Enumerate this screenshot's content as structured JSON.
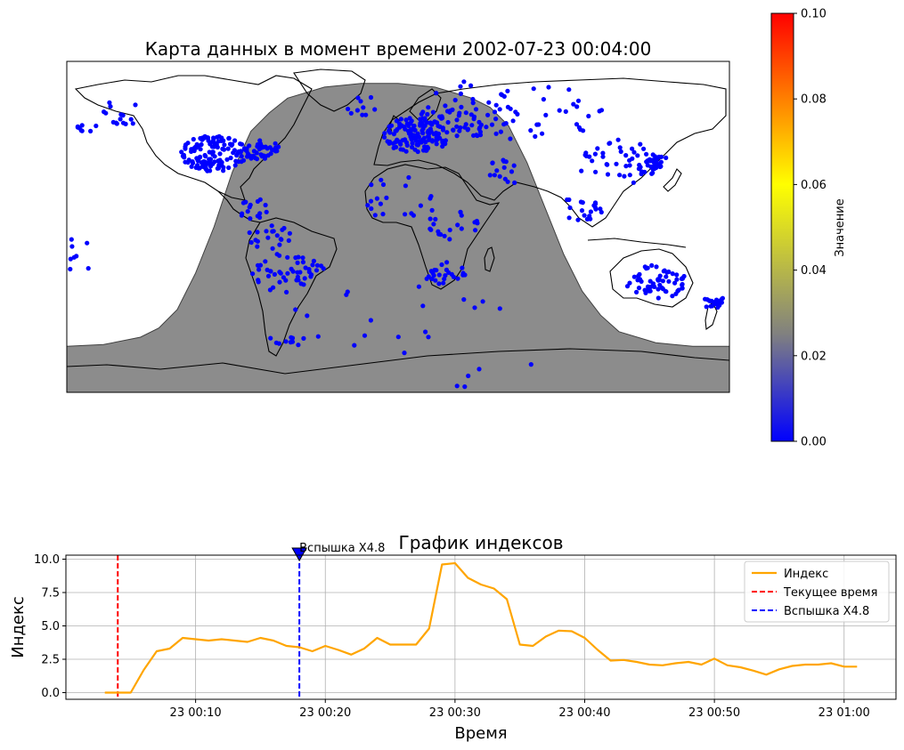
{
  "map": {
    "title": "Карта данных в момент времени 2002-07-23 00:04:00",
    "night_color": "#808080",
    "point_color": "#0000ff",
    "lon_range": [
      -180,
      180
    ],
    "lat_range": [
      -90,
      90
    ],
    "terminator_night_below_lat": [
      [
        -180,
        -65
      ],
      [
        -160,
        -64
      ],
      [
        -140,
        -60
      ],
      [
        -130,
        -55
      ],
      [
        -120,
        -45
      ],
      [
        -110,
        -25
      ],
      [
        -100,
        0
      ],
      [
        -90,
        30
      ],
      [
        -80,
        52
      ],
      [
        -70,
        62
      ],
      [
        -60,
        70
      ],
      [
        -40,
        76
      ],
      [
        -20,
        78
      ],
      [
        0,
        78
      ],
      [
        20,
        76
      ],
      [
        40,
        70
      ],
      [
        50,
        65
      ],
      [
        60,
        55
      ],
      [
        70,
        35
      ],
      [
        80,
        10
      ],
      [
        90,
        -15
      ],
      [
        100,
        -35
      ],
      [
        110,
        -48
      ],
      [
        120,
        -57
      ],
      [
        140,
        -63
      ],
      [
        160,
        -65
      ],
      [
        180,
        -65
      ]
    ],
    "station_clusters": [
      {
        "lon": -100,
        "lat": 40,
        "r": 14,
        "n": 130
      },
      {
        "lon": -75,
        "lat": 42,
        "r": 8,
        "n": 40
      },
      {
        "lon": 10,
        "lat": 50,
        "r": 14,
        "n": 120
      },
      {
        "lon": 30,
        "lat": 55,
        "r": 14,
        "n": 40
      },
      {
        "lon": 40,
        "lat": 65,
        "r": 22,
        "n": 40
      },
      {
        "lon": -60,
        "lat": -25,
        "r": 16,
        "n": 50
      },
      {
        "lon": -70,
        "lat": -5,
        "r": 10,
        "n": 20
      },
      {
        "lon": 25,
        "lat": -25,
        "r": 9,
        "n": 25
      },
      {
        "lon": 30,
        "lat": 0,
        "r": 12,
        "n": 20
      },
      {
        "lon": 0,
        "lat": 15,
        "r": 18,
        "n": 20
      },
      {
        "lon": 80,
        "lat": 60,
        "r": 25,
        "n": 30
      },
      {
        "lon": 120,
        "lat": 35,
        "r": 18,
        "n": 50
      },
      {
        "lon": 140,
        "lat": 36,
        "r": 5,
        "n": 20
      },
      {
        "lon": 140,
        "lat": -30,
        "r": 13,
        "n": 60
      },
      {
        "lon": 172,
        "lat": -41,
        "r": 5,
        "n": 20
      },
      {
        "lon": -150,
        "lat": 62,
        "r": 10,
        "n": 15
      },
      {
        "lon": 100,
        "lat": 10,
        "r": 10,
        "n": 20
      },
      {
        "lon": -170,
        "lat": 55,
        "r": 5,
        "n": 8
      },
      {
        "lon": 60,
        "lat": 30,
        "r": 10,
        "n": 15
      },
      {
        "lon": -20,
        "lat": 65,
        "r": 10,
        "n": 10
      },
      {
        "lon": 0,
        "lat": -70,
        "r": 60,
        "n": 25
      },
      {
        "lon": -60,
        "lat": -62,
        "r": 8,
        "n": 10
      },
      {
        "lon": -175,
        "lat": -15,
        "r": 12,
        "n": 10
      },
      {
        "lon": -80,
        "lat": 10,
        "r": 8,
        "n": 15
      }
    ]
  },
  "colorbar": {
    "label": "Значение",
    "range": [
      0.0,
      0.1
    ],
    "ticks": [
      "0.00",
      "0.02",
      "0.04",
      "0.06",
      "0.08",
      "0.10"
    ],
    "colors": [
      "#0000ff",
      "#808080",
      "#ffff00",
      "#ff0000"
    ]
  },
  "chart_data": {
    "type": "line",
    "title": "График индексов",
    "xlabel": "Время",
    "ylabel": "Индекс",
    "x_unit": "minutes after 2002-07-23 00:00",
    "xlim": [
      0,
      64
    ],
    "ylim": [
      -0.5,
      10.3
    ],
    "x_ticks": [
      {
        "value": 10,
        "label": "23 00:10"
      },
      {
        "value": 20,
        "label": "23 00:20"
      },
      {
        "value": 30,
        "label": "23 00:30"
      },
      {
        "value": 40,
        "label": "23 00:40"
      },
      {
        "value": 50,
        "label": "23 00:50"
      },
      {
        "value": 60,
        "label": "23 01:00"
      }
    ],
    "y_ticks": [
      "0.0",
      "2.5",
      "5.0",
      "7.5",
      "10.0"
    ],
    "grid": true,
    "legend_position": "top-right",
    "series": [
      {
        "name": "Индекс",
        "color": "#ffa500",
        "x": [
          3,
          4,
          5,
          6,
          7,
          8,
          9,
          10,
          11,
          12,
          13,
          14,
          15,
          16,
          17,
          18,
          19,
          20,
          21,
          22,
          23,
          24,
          25,
          26,
          27,
          28,
          29,
          30,
          31,
          32,
          33,
          34,
          35,
          36,
          37,
          38,
          39,
          40,
          41,
          42,
          43,
          44,
          45,
          46,
          47,
          48,
          49,
          50,
          51,
          52,
          53,
          54,
          55,
          56,
          57,
          58,
          59,
          60,
          61
        ],
        "y": [
          0.0,
          0.0,
          0.0,
          1.7,
          3.1,
          3.3,
          4.1,
          4.0,
          3.9,
          4.0,
          3.9,
          3.8,
          4.1,
          3.9,
          3.5,
          3.4,
          3.1,
          3.5,
          3.2,
          2.85,
          3.3,
          4.1,
          3.6,
          3.6,
          3.6,
          4.8,
          9.6,
          9.7,
          8.6,
          8.1,
          7.8,
          7.0,
          3.6,
          3.5,
          4.2,
          4.65,
          4.6,
          4.1,
          3.2,
          2.4,
          2.45,
          2.3,
          2.1,
          2.05,
          2.2,
          2.3,
          2.1,
          2.55,
          2.05,
          1.9,
          1.65,
          1.35,
          1.75,
          2.0,
          2.1,
          2.1,
          2.2,
          1.95,
          1.95
        ]
      }
    ],
    "vlines": [
      {
        "name": "Текущее время",
        "x": 4,
        "color": "#ff0000"
      },
      {
        "name": "Вспышка X4.8",
        "x": 18,
        "color": "#0000ff"
      }
    ],
    "annotation": {
      "text": "Вспышка X4.8",
      "x": 18,
      "y": 10.3
    }
  }
}
